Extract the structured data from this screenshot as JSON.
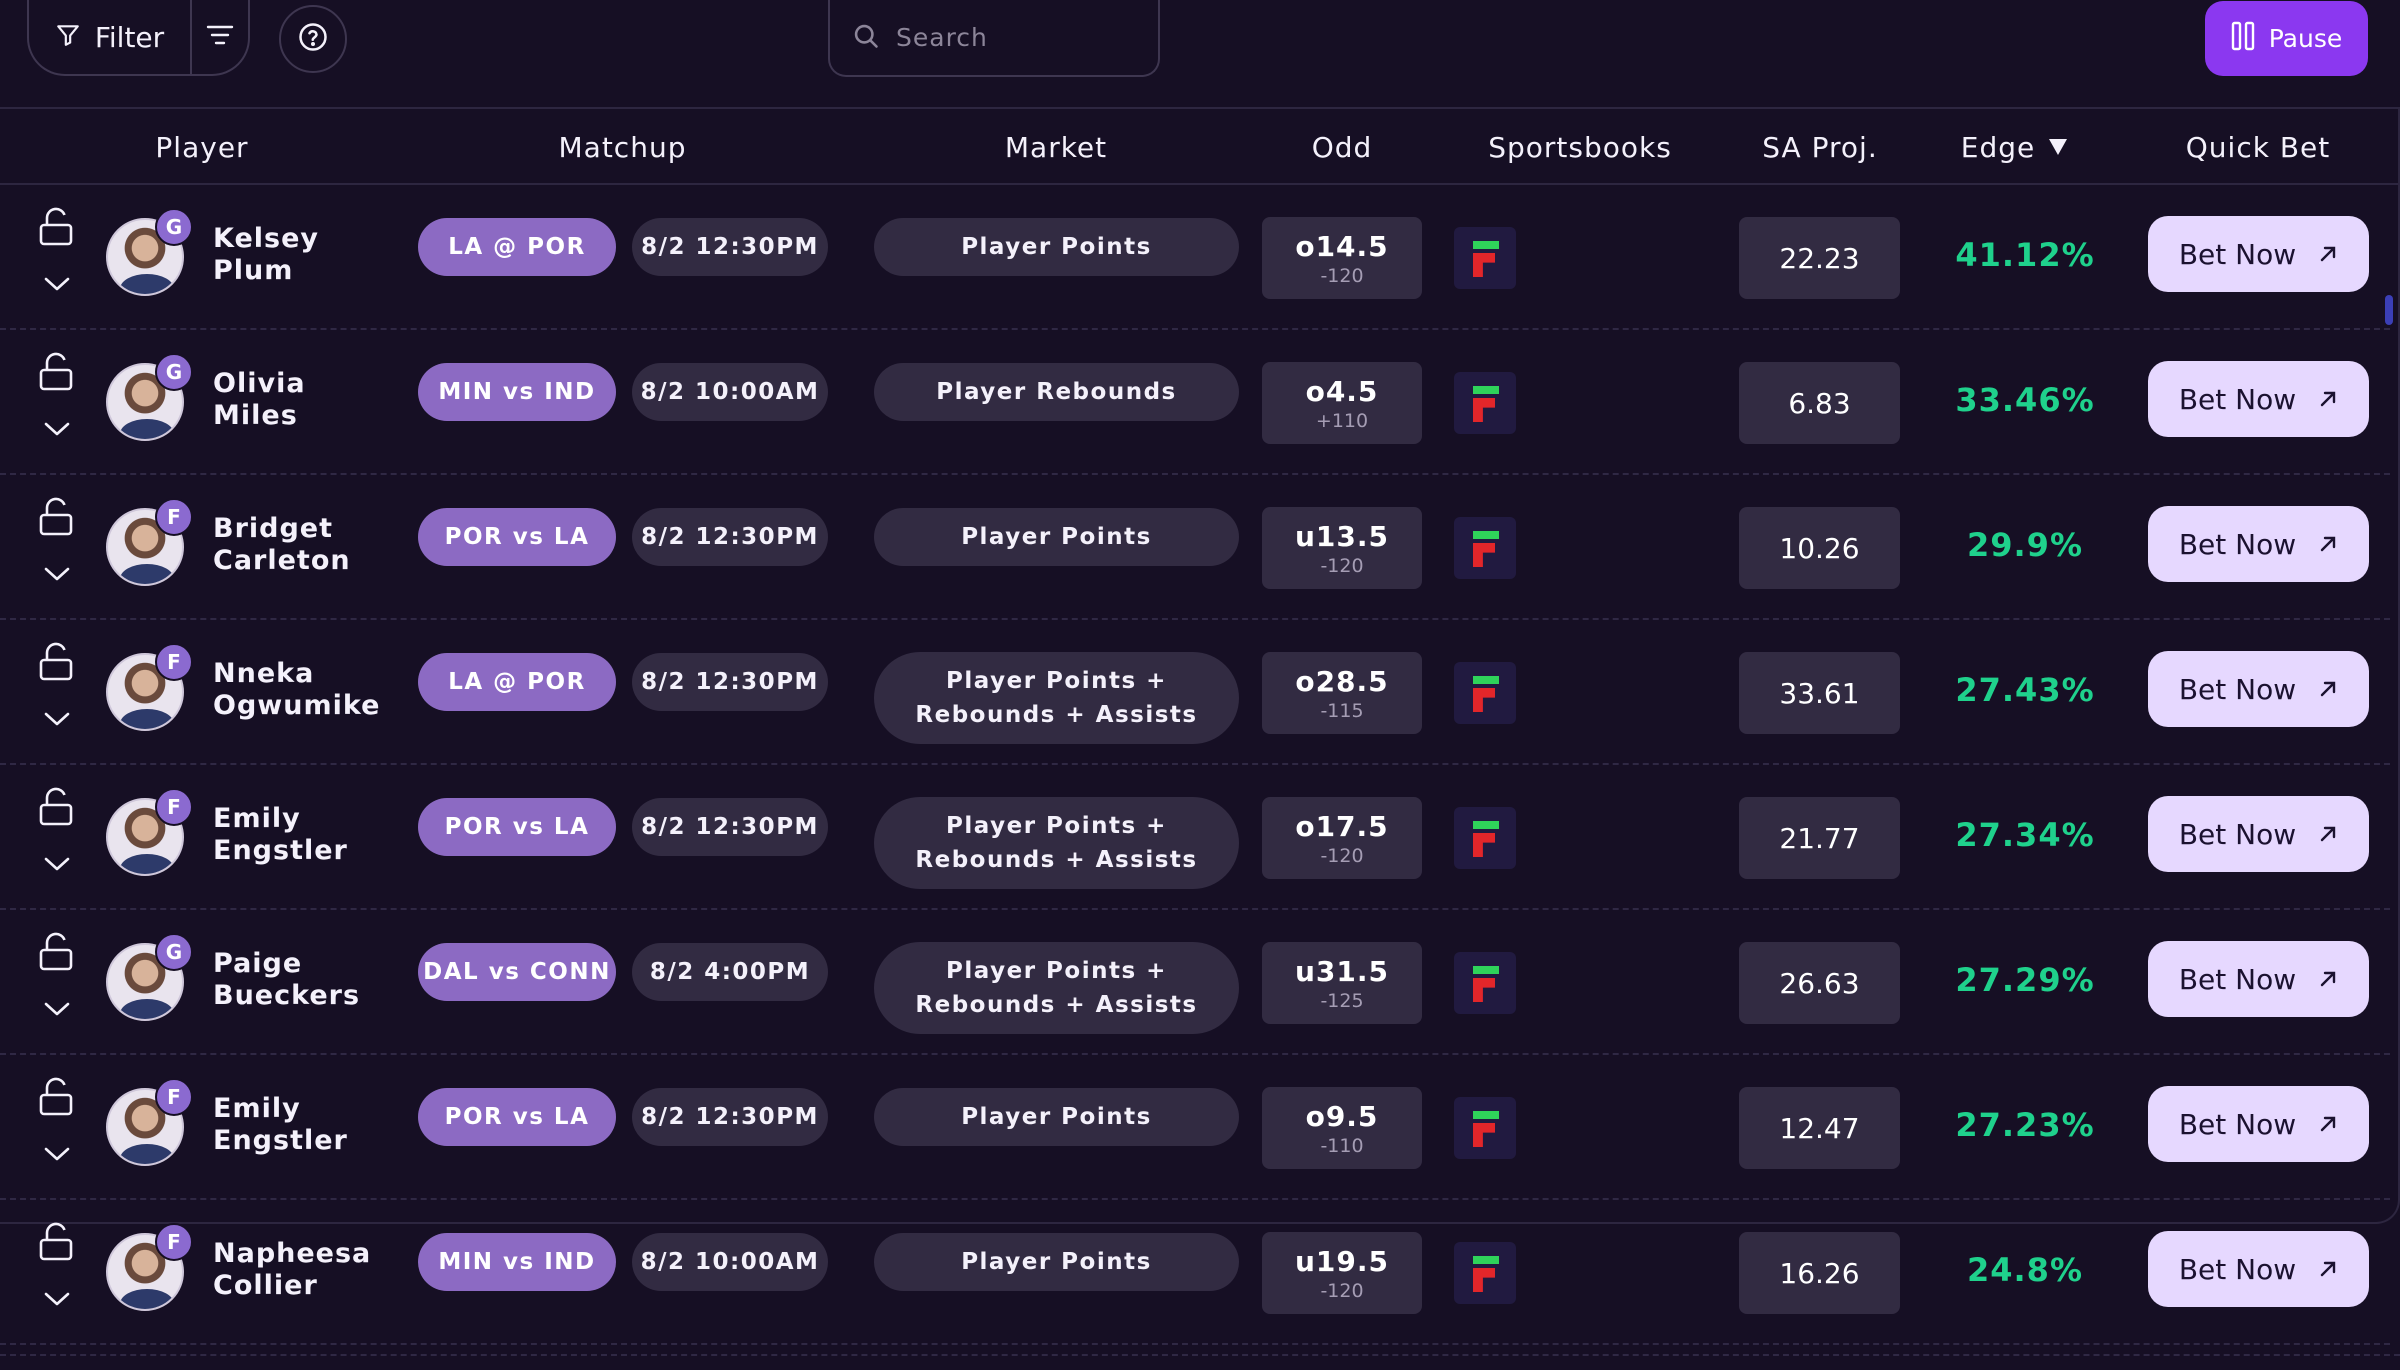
{
  "toolbar": {
    "filter_label": "Filter",
    "search_placeholder": "Search",
    "pause_label": "Pause"
  },
  "columns": {
    "player": "Player",
    "matchup": "Matchup",
    "market": "Market",
    "odd": "Odd",
    "sportsbooks": "Sportsbooks",
    "sa_proj": "SA Proj.",
    "edge": "Edge",
    "quick_bet": "Quick Bet"
  },
  "colors": {
    "background": "#160f24",
    "accent": "#8b38f0",
    "matchup_pill": "#8c6ac3",
    "edge_green": "#1fd18c",
    "bet_button": "#e6d8ff"
  },
  "bet_label": "Bet Now",
  "rows": [
    {
      "name": "Kelsey\nPlum",
      "pos": "G",
      "matchup": "LA @ POR",
      "time": "8/2 12:30PM",
      "market": "Player Points",
      "line": "o14.5",
      "price": "-120",
      "proj": "22.23",
      "edge": "41.12%"
    },
    {
      "name": "Olivia\nMiles",
      "pos": "G",
      "matchup": "MIN vs IND",
      "time": "8/2 10:00AM",
      "market": "Player Rebounds",
      "line": "o4.5",
      "price": "+110",
      "proj": "6.83",
      "edge": "33.46%"
    },
    {
      "name": "Bridget\nCarleton",
      "pos": "F",
      "matchup": "POR vs LA",
      "time": "8/2 12:30PM",
      "market": "Player Points",
      "line": "u13.5",
      "price": "-120",
      "proj": "10.26",
      "edge": "29.9%"
    },
    {
      "name": "Nneka\nOgwumike",
      "pos": "F",
      "matchup": "LA @ POR",
      "time": "8/2 12:30PM",
      "market": "Player Points +\nRebounds + Assists",
      "line": "o28.5",
      "price": "-115",
      "proj": "33.61",
      "edge": "27.43%"
    },
    {
      "name": "Emily\nEngstler",
      "pos": "F",
      "matchup": "POR vs LA",
      "time": "8/2 12:30PM",
      "market": "Player Points +\nRebounds + Assists",
      "line": "o17.5",
      "price": "-120",
      "proj": "21.77",
      "edge": "27.34%"
    },
    {
      "name": "Paige\nBueckers",
      "pos": "G",
      "matchup": "DAL vs CONN",
      "time": "8/2 4:00PM",
      "market": "Player Points +\nRebounds + Assists",
      "line": "u31.5",
      "price": "-125",
      "proj": "26.63",
      "edge": "27.29%"
    },
    {
      "name": "Emily\nEngstler",
      "pos": "F",
      "matchup": "POR vs LA",
      "time": "8/2 12:30PM",
      "market": "Player Points",
      "line": "o9.5",
      "price": "-110",
      "proj": "12.47",
      "edge": "27.23%"
    },
    {
      "name": "Napheesa\nCollier",
      "pos": "F",
      "matchup": "MIN vs IND",
      "time": "8/2 10:00AM",
      "market": "Player Points",
      "line": "u19.5",
      "price": "-120",
      "proj": "16.26",
      "edge": "24.8%"
    }
  ]
}
